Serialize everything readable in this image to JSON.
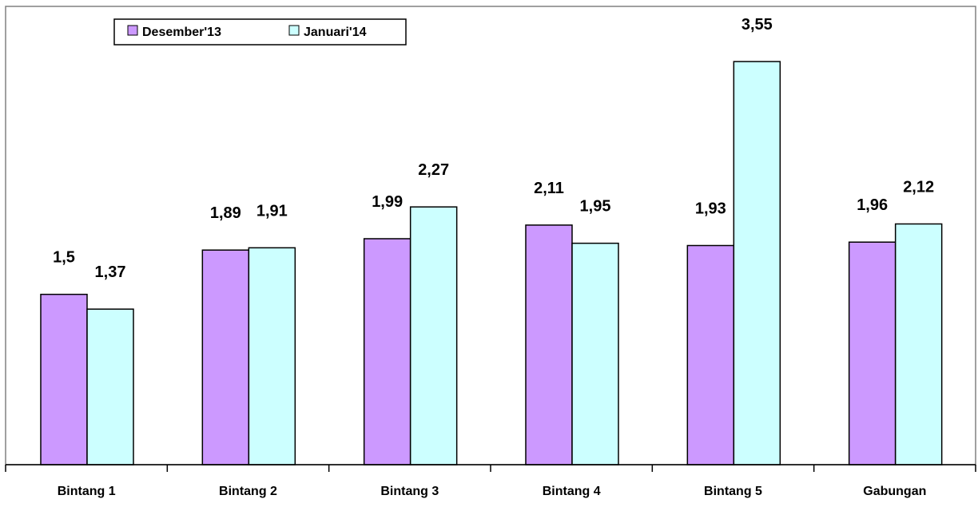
{
  "chart_data": {
    "type": "bar",
    "categories": [
      "Bintang 1",
      "Bintang 2",
      "Bintang 3",
      "Bintang 4",
      "Bintang 5",
      "Gabungan"
    ],
    "series": [
      {
        "name": "Desember'13",
        "values": [
          1.5,
          1.89,
          1.99,
          2.11,
          1.93,
          1.96
        ],
        "labels": [
          "1,5",
          "1,89",
          "1,99",
          "2,11",
          "1,93",
          "1,96"
        ]
      },
      {
        "name": "Januari'14",
        "values": [
          1.37,
          1.91,
          2.27,
          1.95,
          3.55,
          2.12
        ],
        "labels": [
          "1,37",
          "1,91",
          "2,27",
          "1,95",
          "3,55",
          "2,12"
        ]
      }
    ],
    "title": "",
    "xlabel": "",
    "ylabel": "",
    "ylim": [
      0,
      3.6
    ],
    "grid": false,
    "legend_position": "top-left",
    "colors": {
      "series": [
        "#cc99ff",
        "#ccffff"
      ],
      "border": "#000000",
      "frame": "#808080"
    }
  }
}
